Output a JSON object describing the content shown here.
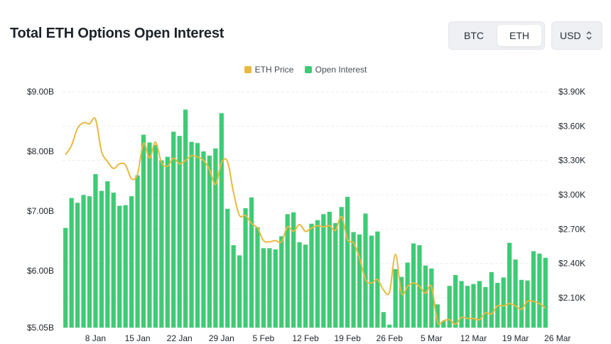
{
  "title": "Total ETH Options Open Interest",
  "asset_toggle": {
    "options": [
      "BTC",
      "ETH"
    ],
    "selected": "ETH"
  },
  "currency_select": {
    "value": "USD"
  },
  "colors": {
    "price_line": "#e8b940",
    "bars": "#3ecb75",
    "grid": "#e9ecef"
  },
  "chart_data": {
    "type": "bar",
    "title": "Total ETH Options Open Interest",
    "x_tick_labels": [
      "8 Jan",
      "15 Jan",
      "22 Jan",
      "29 Jan",
      "5 Feb",
      "12 Feb",
      "19 Feb",
      "26 Feb",
      "5 Mar",
      "12 Mar",
      "19 Mar",
      "26 Mar"
    ],
    "y_left": {
      "label": "Open Interest",
      "ylim": [
        5.05,
        9.0
      ],
      "ticks": [
        "$5.05B",
        "$6.00B",
        "$7.00B",
        "$8.00B",
        "$9.00B"
      ],
      "tick_values": [
        5.05,
        6.0,
        7.0,
        8.0,
        9.0
      ],
      "unit": "$B"
    },
    "y_right": {
      "label": "ETH Price",
      "ylim": [
        1.84,
        3.9
      ],
      "ticks": [
        "$2.10K",
        "$2.40K",
        "$2.70K",
        "$3.00K",
        "$3.30K",
        "$3.60K",
        "$3.90K"
      ],
      "tick_values": [
        2.1,
        2.4,
        2.7,
        3.0,
        3.3,
        3.6,
        3.9
      ],
      "unit": "$K"
    },
    "series": [
      {
        "name": "Open Interest",
        "type": "bar",
        "axis": "left",
        "values": [
          6.72,
          7.22,
          7.14,
          7.27,
          7.25,
          7.62,
          7.34,
          7.5,
          7.31,
          7.09,
          7.1,
          7.25,
          7.6,
          8.28,
          8.15,
          8.11,
          7.85,
          7.91,
          8.33,
          8.26,
          8.7,
          8.16,
          8.14,
          8.0,
          7.93,
          8.05,
          8.64,
          7.04,
          6.43,
          6.26,
          7.05,
          7.23,
          6.73,
          6.38,
          6.38,
          6.36,
          6.58,
          6.95,
          6.98,
          6.48,
          6.44,
          6.79,
          6.85,
          6.95,
          6.99,
          6.8,
          7.07,
          7.24,
          6.65,
          6.61,
          6.96,
          6.59,
          6.66,
          5.31,
          5.1,
          6.03,
          5.9,
          6.14,
          6.46,
          6.43,
          6.09,
          6.04,
          5.44,
          5.16,
          5.75,
          5.93,
          5.83,
          5.75,
          5.78,
          5.83,
          5.73,
          5.98,
          5.8,
          5.89,
          6.47,
          6.19,
          5.85,
          5.84,
          6.33,
          6.29,
          6.22
        ]
      },
      {
        "name": "ETH Price",
        "type": "line",
        "axis": "right",
        "values": [
          3.35,
          3.43,
          3.58,
          3.63,
          3.62,
          3.66,
          3.38,
          3.29,
          3.23,
          3.27,
          3.26,
          3.14,
          3.18,
          3.45,
          3.32,
          3.46,
          3.28,
          3.25,
          3.32,
          3.27,
          3.3,
          3.34,
          3.33,
          3.3,
          3.22,
          3.09,
          3.28,
          3.29,
          3.02,
          2.82,
          2.82,
          2.75,
          2.71,
          2.6,
          2.59,
          2.6,
          2.59,
          2.72,
          2.68,
          2.74,
          2.68,
          2.71,
          2.73,
          2.72,
          2.73,
          2.69,
          2.81,
          2.61,
          2.58,
          2.45,
          2.26,
          2.23,
          2.26,
          2.17,
          2.15,
          2.48,
          2.14,
          2.2,
          2.23,
          2.2,
          2.14,
          2.2,
          1.89,
          1.9,
          1.91,
          1.87,
          1.93,
          1.92,
          1.92,
          1.91,
          1.97,
          1.96,
          2.03,
          2.03,
          2.05,
          2.03,
          2.0,
          2.07,
          2.07,
          2.05,
          2.01
        ]
      }
    ]
  }
}
